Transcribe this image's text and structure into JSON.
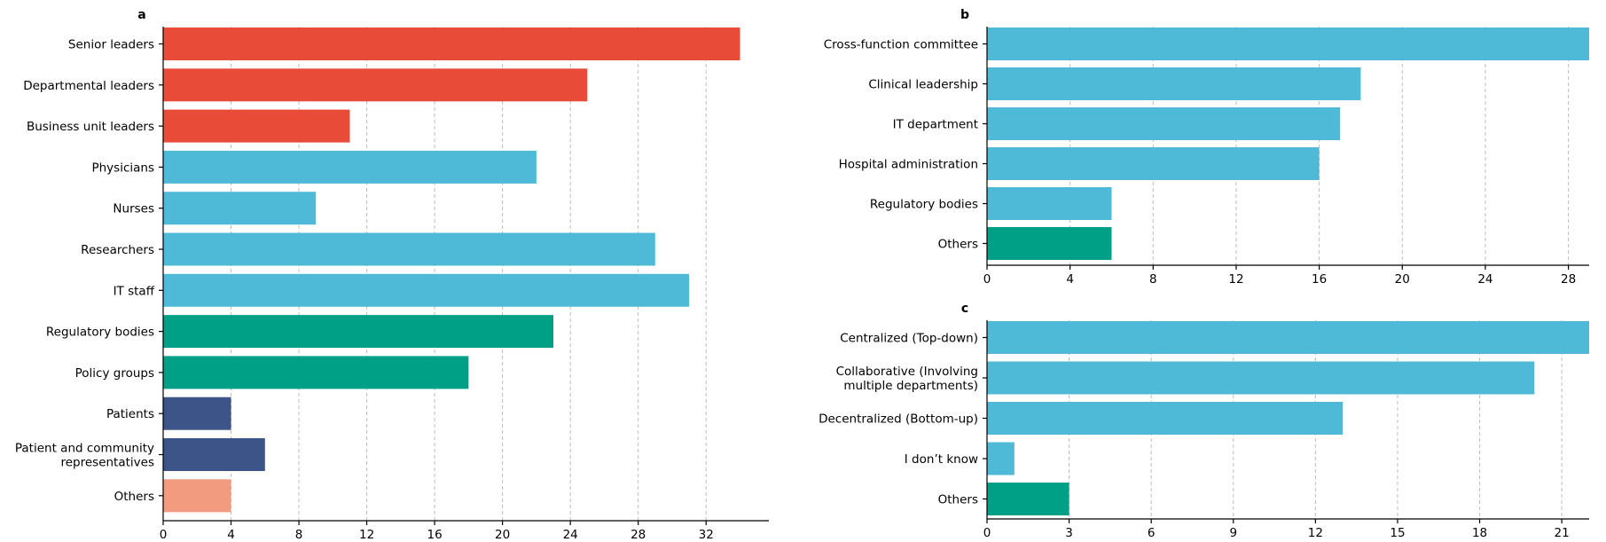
{
  "colors": {
    "red": "#E84C38",
    "cyan": "#4EBAD7",
    "teal": "#00A087",
    "navy": "#3C5488",
    "salmon": "#F39B7F"
  },
  "chart_data": [
    {
      "type": "bar",
      "orientation": "horizontal",
      "panel": "a",
      "categories": [
        "Senior leaders",
        "Departmental leaders",
        "Business unit leaders",
        "Physicians",
        "Nurses",
        "Researchers",
        "IT staff",
        "Regulatory bodies",
        "Policy groups",
        "Patients",
        "Patient and community\nrepresentatives",
        "Others"
      ],
      "values": [
        34,
        25,
        11,
        22,
        9,
        29,
        31,
        23,
        18,
        4,
        6,
        4
      ],
      "bar_colors": [
        "red",
        "red",
        "red",
        "cyan",
        "cyan",
        "cyan",
        "cyan",
        "teal",
        "teal",
        "navy",
        "navy",
        "salmon"
      ],
      "xticks": [
        0,
        4,
        8,
        12,
        16,
        20,
        24,
        28,
        32
      ],
      "xlim": [
        0,
        35.7
      ],
      "grid": "x-dashed",
      "title": "",
      "xlabel": "",
      "ylabel": ""
    },
    {
      "type": "bar",
      "orientation": "horizontal",
      "panel": "b",
      "categories": [
        "Cross-function committee",
        "Clinical leadership",
        "IT department",
        "Hospital administration",
        "Regulatory bodies",
        "Others"
      ],
      "values": [
        29,
        18,
        17,
        16,
        6,
        6
      ],
      "bar_colors": [
        "cyan",
        "cyan",
        "cyan",
        "cyan",
        "cyan",
        "teal"
      ],
      "xticks": [
        0,
        4,
        8,
        12,
        16,
        20,
        24,
        28
      ],
      "xlim": [
        0,
        29
      ],
      "grid": "x-dashed",
      "title": "",
      "xlabel": "",
      "ylabel": ""
    },
    {
      "type": "bar",
      "orientation": "horizontal",
      "panel": "c",
      "categories": [
        "Centralized (Top-down)",
        "Collaborative (Involving\nmultiple departments)",
        "Decentralized (Bottom-up)",
        "I don’t know",
        "Others"
      ],
      "values": [
        22,
        20,
        13,
        1,
        3
      ],
      "bar_colors": [
        "cyan",
        "cyan",
        "cyan",
        "cyan",
        "teal"
      ],
      "xticks": [
        0,
        3,
        6,
        9,
        12,
        15,
        18,
        21
      ],
      "xlim": [
        0,
        22
      ],
      "grid": "x-dashed",
      "title": "",
      "xlabel": "",
      "ylabel": ""
    }
  ]
}
